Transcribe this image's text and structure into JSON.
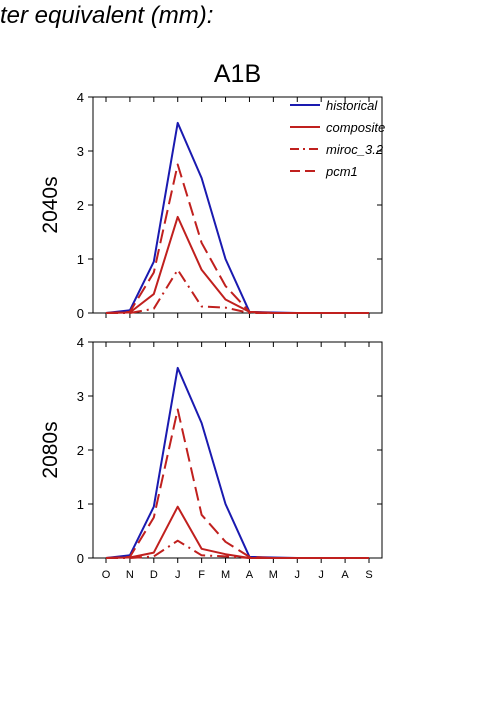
{
  "page_title": "ter equivalent (mm):",
  "colors": {
    "historical": "#1a1ab0",
    "scenario": "#c0201e",
    "axis": "#000000"
  },
  "chart_data": [
    {
      "type": "line",
      "title": "A1B",
      "ylabel": "2040s",
      "xlabel": "",
      "categories": [
        "O",
        "N",
        "D",
        "J",
        "F",
        "M",
        "A",
        "M",
        "J",
        "J",
        "A",
        "S"
      ],
      "ylim": [
        0,
        4
      ],
      "yticks": [
        0,
        1,
        2,
        3,
        4
      ],
      "grid": false,
      "legend": "top-right",
      "show_xtick_labels": false,
      "series": [
        {
          "name": "historical",
          "style": "solid",
          "color": "#1a1ab0",
          "values": [
            0,
            0.05,
            0.95,
            3.52,
            2.5,
            1.0,
            0.02,
            0.01,
            0.0,
            0.0,
            0.0,
            0.0
          ]
        },
        {
          "name": "composite",
          "style": "solid",
          "color": "#c0201e",
          "values": [
            0,
            0.01,
            0.35,
            1.78,
            0.8,
            0.25,
            0.02,
            0.0,
            0.0,
            0.0,
            0.0,
            0.0
          ]
        },
        {
          "name": "miroc_3.2",
          "style": "dashdot",
          "color": "#c0201e",
          "values": [
            0,
            0.0,
            0.08,
            0.8,
            0.12,
            0.1,
            0.0,
            0.0,
            0.0,
            0.0,
            0.0,
            0.0
          ]
        },
        {
          "name": "pcm1",
          "style": "dash",
          "color": "#c0201e",
          "values": [
            0,
            0.02,
            0.75,
            2.75,
            1.3,
            0.5,
            0.02,
            0.0,
            0.0,
            0.0,
            0.0,
            0.0
          ]
        }
      ]
    },
    {
      "type": "line",
      "title": "",
      "ylabel": "2080s",
      "xlabel": "",
      "categories": [
        "O",
        "N",
        "D",
        "J",
        "F",
        "M",
        "A",
        "M",
        "J",
        "J",
        "A",
        "S"
      ],
      "ylim": [
        0,
        4
      ],
      "yticks": [
        0,
        1,
        2,
        3,
        4
      ],
      "grid": false,
      "legend": "",
      "show_xtick_labels": true,
      "series": [
        {
          "name": "historical",
          "style": "solid",
          "color": "#1a1ab0",
          "values": [
            0,
            0.05,
            0.95,
            3.52,
            2.5,
            1.0,
            0.02,
            0.01,
            0.0,
            0.0,
            0.0,
            0.0
          ]
        },
        {
          "name": "composite",
          "style": "solid",
          "color": "#c0201e",
          "values": [
            0,
            0.01,
            0.1,
            0.95,
            0.17,
            0.07,
            0.0,
            0.0,
            0.0,
            0.0,
            0.0,
            0.0
          ]
        },
        {
          "name": "miroc_3.2",
          "style": "dashdot",
          "color": "#c0201e",
          "values": [
            0,
            0.0,
            0.03,
            0.32,
            0.05,
            0.03,
            0.0,
            0.0,
            0.0,
            0.0,
            0.0,
            0.0
          ]
        },
        {
          "name": "pcm1",
          "style": "dash",
          "color": "#c0201e",
          "values": [
            0,
            0.02,
            0.75,
            2.75,
            0.8,
            0.3,
            0.02,
            0.0,
            0.0,
            0.0,
            0.0,
            0.0
          ]
        }
      ]
    }
  ]
}
